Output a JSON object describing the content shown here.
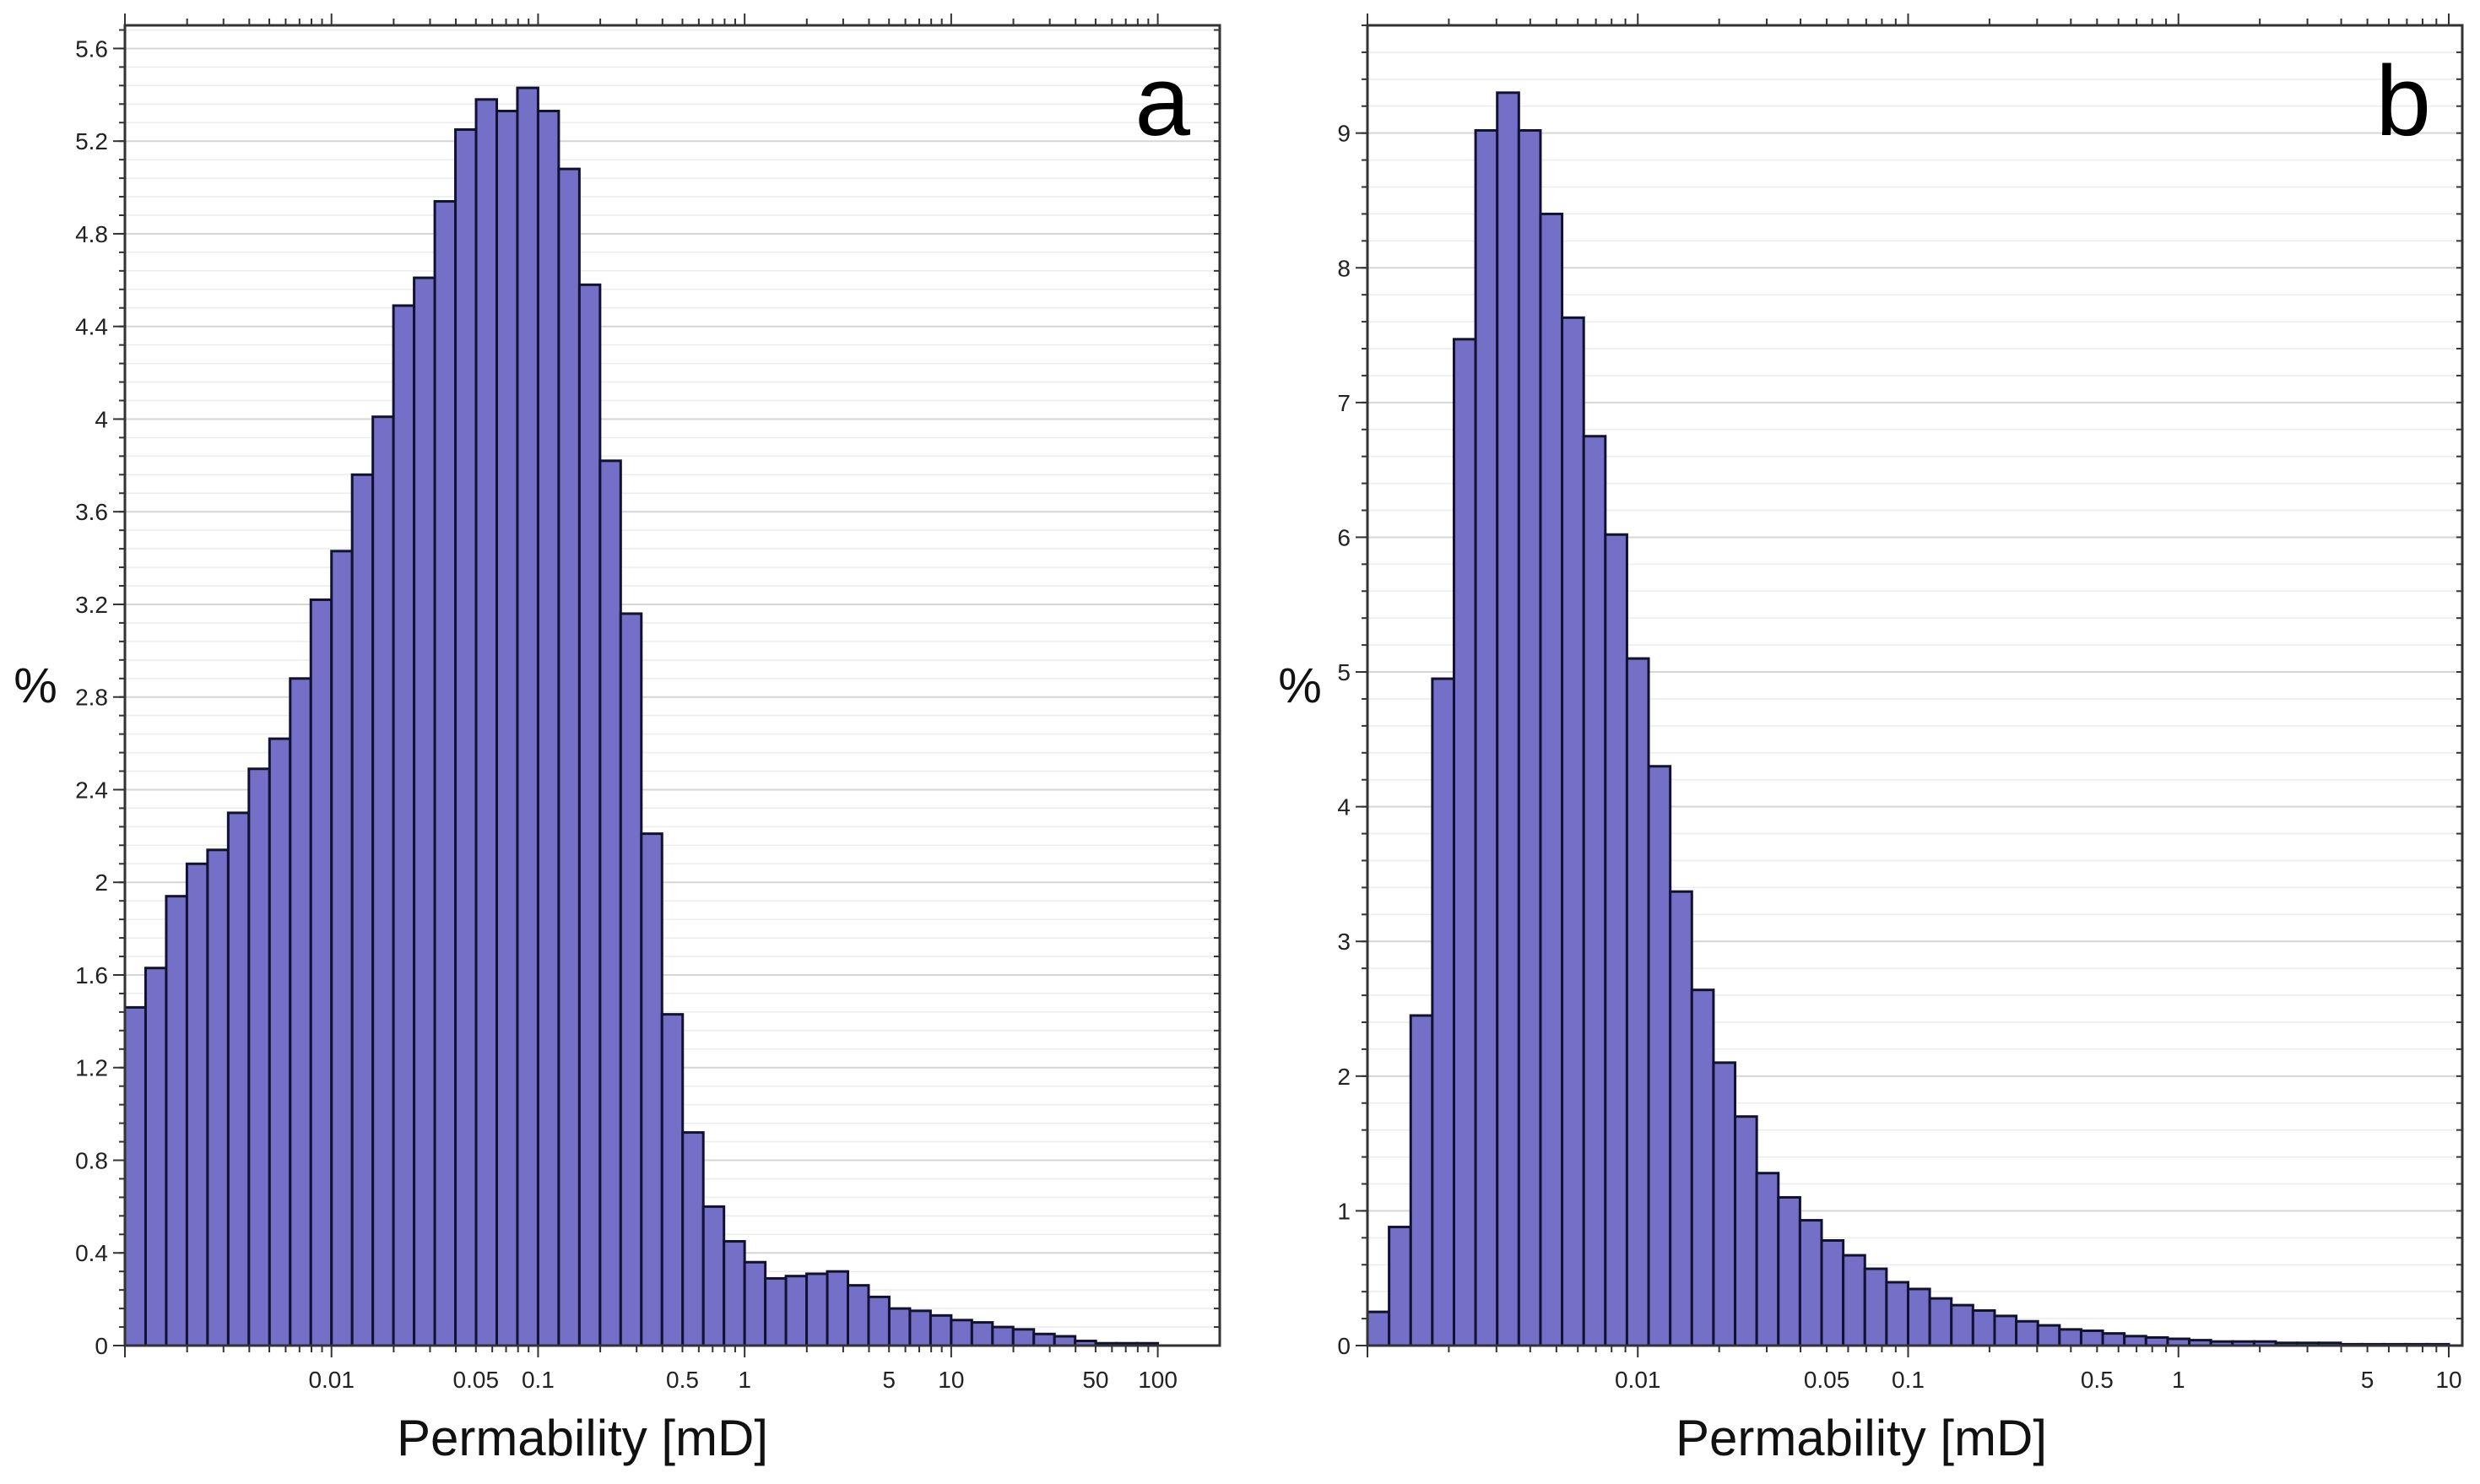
{
  "chart_data": [
    {
      "type": "bar",
      "panel_label": "a",
      "xlabel": "Permability [mD]",
      "ylabel": "%",
      "x_scale": "log",
      "x_ticks": [
        "0.01",
        "0.05",
        "0.1",
        "0.5",
        "1",
        "5",
        "10",
        "50",
        "100"
      ],
      "x_tick_values": [
        0.01,
        0.05,
        0.1,
        0.5,
        1,
        5,
        10,
        50,
        100
      ],
      "x_range_log10": [
        -3.0,
        2.3
      ],
      "y_ticks": [
        "0",
        "0.4",
        "0.8",
        "1.2",
        "1.6",
        "2",
        "2.4",
        "2.8",
        "3.2",
        "3.6",
        "4",
        "4.4",
        "4.8",
        "5.2",
        "5.6"
      ],
      "ylim": [
        0,
        5.7
      ],
      "grid": true,
      "bin_start_log10": -3.0,
      "bin_width_log10": 0.1,
      "values": [
        1.46,
        1.63,
        1.94,
        2.08,
        2.14,
        2.3,
        2.49,
        2.62,
        2.88,
        3.22,
        3.43,
        3.76,
        4.01,
        4.49,
        4.61,
        4.94,
        5.25,
        5.38,
        5.33,
        5.43,
        5.33,
        5.08,
        4.58,
        3.82,
        3.16,
        2.21,
        1.43,
        0.92,
        0.6,
        0.45,
        0.36,
        0.29,
        0.3,
        0.31,
        0.32,
        0.26,
        0.21,
        0.16,
        0.15,
        0.13,
        0.11,
        0.1,
        0.08,
        0.07,
        0.05,
        0.04,
        0.02,
        0.01,
        0.01,
        0.01
      ]
    },
    {
      "type": "bar",
      "panel_label": "b",
      "xlabel": "Permability [mD]",
      "ylabel": "%",
      "x_scale": "log",
      "x_ticks": [
        "0.01",
        "0.05",
        "0.1",
        "0.5",
        "1",
        "5",
        "10"
      ],
      "x_tick_values": [
        0.01,
        0.05,
        0.1,
        0.5,
        1,
        5,
        10
      ],
      "x_range_log10": [
        -3.0,
        1.05
      ],
      "y_ticks": [
        "0",
        "1",
        "2",
        "3",
        "4",
        "5",
        "6",
        "7",
        "8",
        "9"
      ],
      "ylim": [
        0,
        9.8
      ],
      "grid": true,
      "bin_start_log10": -3.0,
      "bin_width_log10": 0.08,
      "values": [
        0.25,
        0.88,
        2.45,
        4.95,
        7.47,
        9.02,
        9.3,
        9.02,
        8.4,
        7.63,
        6.75,
        6.02,
        5.1,
        4.3,
        3.37,
        2.64,
        2.1,
        1.7,
        1.28,
        1.1,
        0.93,
        0.78,
        0.67,
        0.57,
        0.47,
        0.42,
        0.35,
        0.3,
        0.26,
        0.22,
        0.18,
        0.15,
        0.12,
        0.11,
        0.09,
        0.07,
        0.06,
        0.05,
        0.04,
        0.03,
        0.03,
        0.03,
        0.02,
        0.02,
        0.02,
        0.01,
        0.01,
        0.01,
        0.01,
        0.01
      ]
    }
  ]
}
